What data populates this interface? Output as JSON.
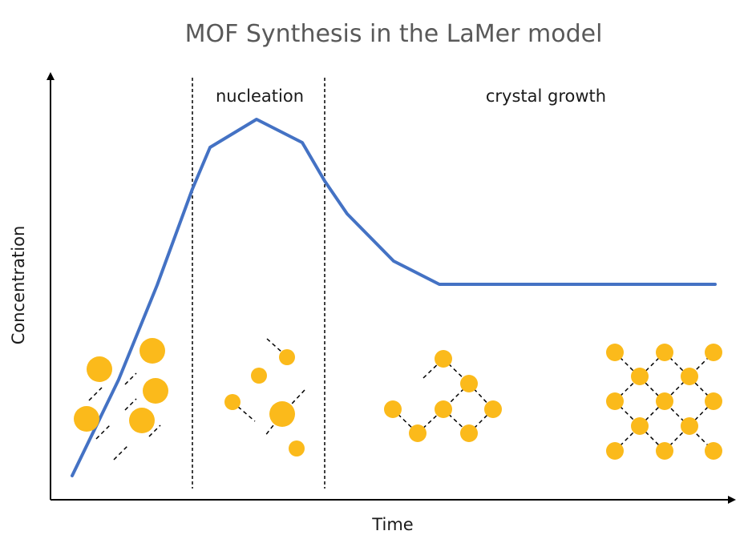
{
  "title": "MOF Synthesis in the LaMer model",
  "axes": {
    "x_label": "Time",
    "y_label": "Concentration"
  },
  "regions": {
    "nucleation": "nucleation",
    "growth": "crystal growth"
  },
  "colors": {
    "curve": "#4472C4",
    "particle": "#FBBA1B",
    "axis": "#000000",
    "title": "#595959"
  }
}
